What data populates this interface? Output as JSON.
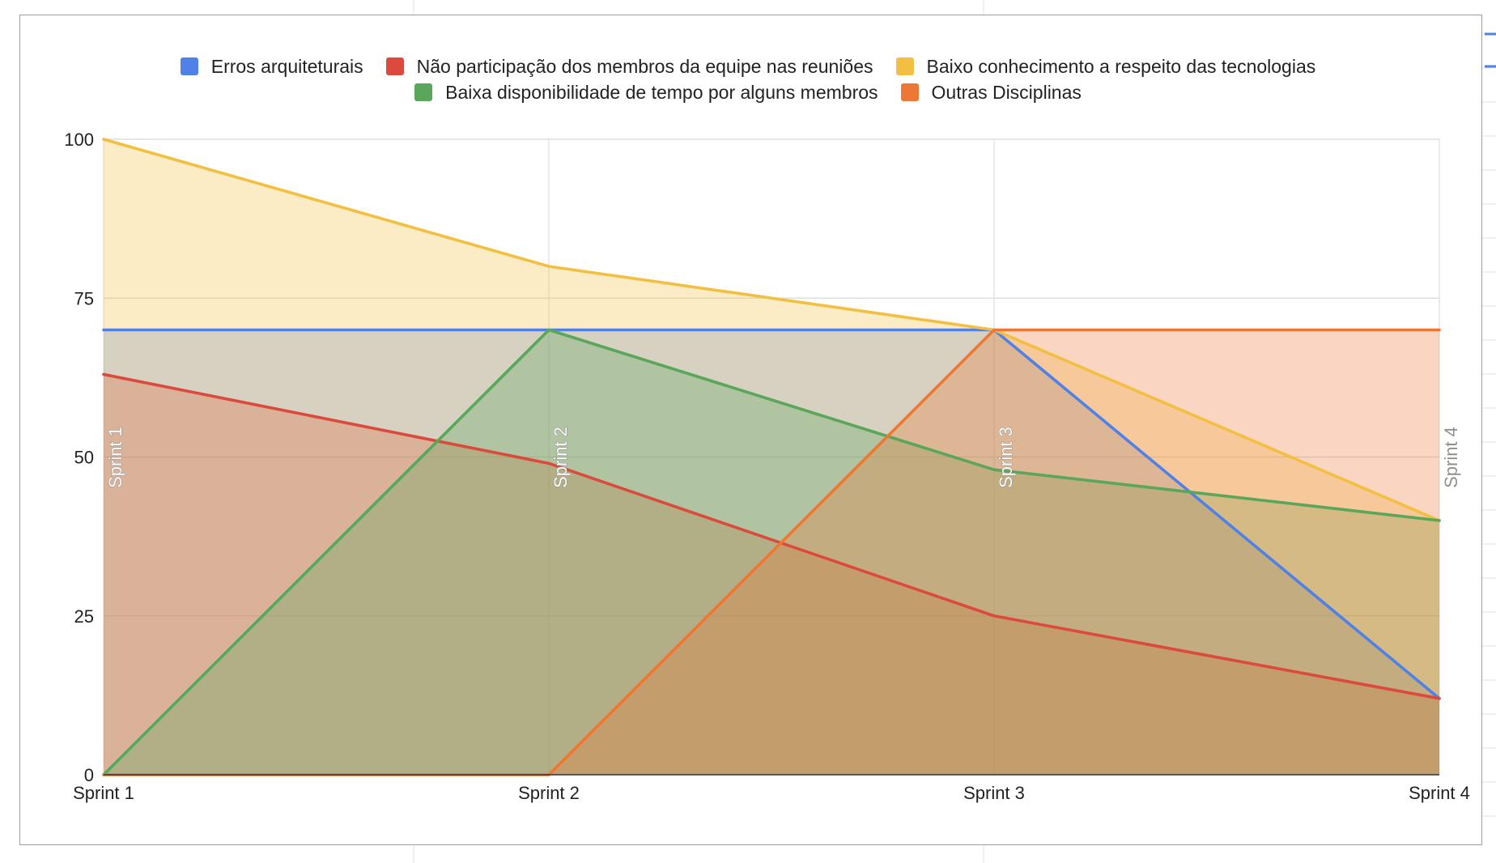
{
  "colors": {
    "erros": "#4f81e8",
    "nao_participacao": "#db4a3c",
    "baixo_conhecimento": "#f2bf42",
    "baixa_disponibilidade": "#5aa65b",
    "outras": "#ed7835"
  },
  "chart_data": {
    "type": "area",
    "categories": [
      "Sprint 1",
      "Sprint 2",
      "Sprint 3",
      "Sprint 4"
    ],
    "ylim": [
      0,
      100
    ],
    "yticks": [
      "0",
      "25",
      "50",
      "75",
      "100"
    ],
    "grid": true,
    "legend_position": "top",
    "series": [
      {
        "name": "Erros arquiteturais",
        "color_key": "erros",
        "values": [
          70,
          70,
          70,
          12
        ]
      },
      {
        "name": "Não participação dos membros da equipe nas reuniões",
        "color_key": "nao_participacao",
        "values": [
          63,
          49,
          25,
          12
        ]
      },
      {
        "name": "Baixo conhecimento a respeito das tecnologias",
        "color_key": "baixo_conhecimento",
        "values": [
          100,
          80,
          70,
          40
        ]
      },
      {
        "name": "Baixa disponibilidade de tempo por alguns membros",
        "color_key": "baixa_disponibilidade",
        "values": [
          0,
          70,
          48,
          40
        ]
      },
      {
        "name": "Outras Disciplinas",
        "color_key": "outras",
        "values": [
          0,
          0,
          70,
          70
        ]
      }
    ],
    "annotations": [
      "Sprint 1",
      "Sprint 2",
      "Sprint 3",
      "Sprint 4"
    ]
  }
}
